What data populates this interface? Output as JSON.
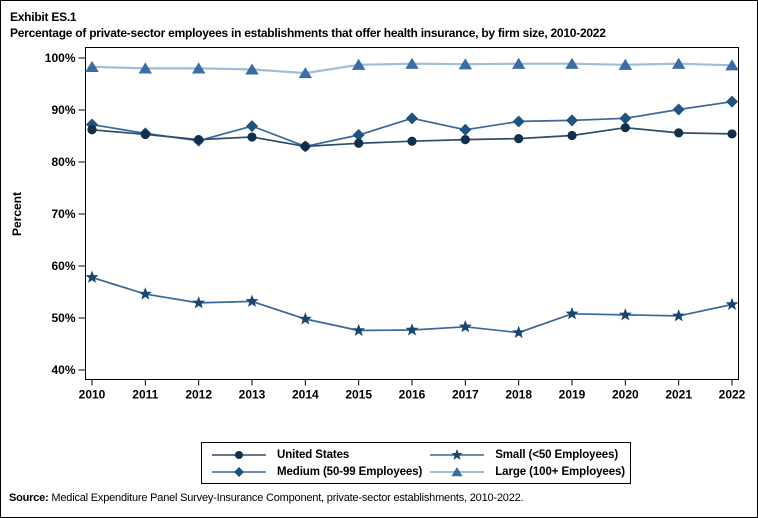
{
  "title": {
    "line1": "Exhibit ES.1",
    "line2": "Percentage of private-sector employees in establishments that offer health insurance, by firm size, 2010-2022"
  },
  "chart_data": {
    "type": "line",
    "title": "Percentage of private-sector employees in establishments that offer health insurance, by firm size, 2010-2022",
    "x": [
      2010,
      2011,
      2012,
      2013,
      2014,
      2015,
      2016,
      2017,
      2018,
      2019,
      2020,
      2021,
      2022
    ],
    "xlabel": "",
    "ylabel": "Percent",
    "ylim": [
      40,
      100
    ],
    "yticks": [
      40,
      50,
      60,
      70,
      80,
      90,
      100
    ],
    "ytick_suffix": "%",
    "grid": false,
    "legend_position": "bottom",
    "series": [
      {
        "name": "United States",
        "marker": "circle",
        "color": "#12304C",
        "line_color": "#2E4D68",
        "values": [
          86.2,
          85.3,
          84.3,
          84.8,
          83.0,
          83.6,
          84.0,
          84.3,
          84.5,
          85.1,
          86.6,
          85.6,
          85.4
        ]
      },
      {
        "name": "Medium (50-99 Employees)",
        "marker": "diamond",
        "color": "#1F5380",
        "line_color": "#38699C",
        "values": [
          87.2,
          85.5,
          84.1,
          86.9,
          83.0,
          85.2,
          88.4,
          86.2,
          87.8,
          88.0,
          88.4,
          90.1,
          91.6
        ]
      },
      {
        "name": "Small (<50 Employees)",
        "marker": "star",
        "color": "#17466F",
        "line_color": "#38699C",
        "values": [
          57.8,
          54.6,
          52.9,
          53.2,
          49.8,
          47.6,
          47.7,
          48.3,
          47.2,
          50.8,
          50.6,
          50.4,
          52.6
        ]
      },
      {
        "name": "Large (100+ Employees)",
        "marker": "triangle",
        "color": "#3A6DA3",
        "line_color": "#9FBCD8",
        "values": [
          98.3,
          98.0,
          98.0,
          97.8,
          97.1,
          98.7,
          98.9,
          98.8,
          98.9,
          98.9,
          98.7,
          98.9,
          98.6
        ]
      }
    ]
  },
  "source": {
    "label": "Source:",
    "text": " Medical Expenditure Panel Survey-Insurance Component, private-sector establishments, 2010-2022."
  }
}
